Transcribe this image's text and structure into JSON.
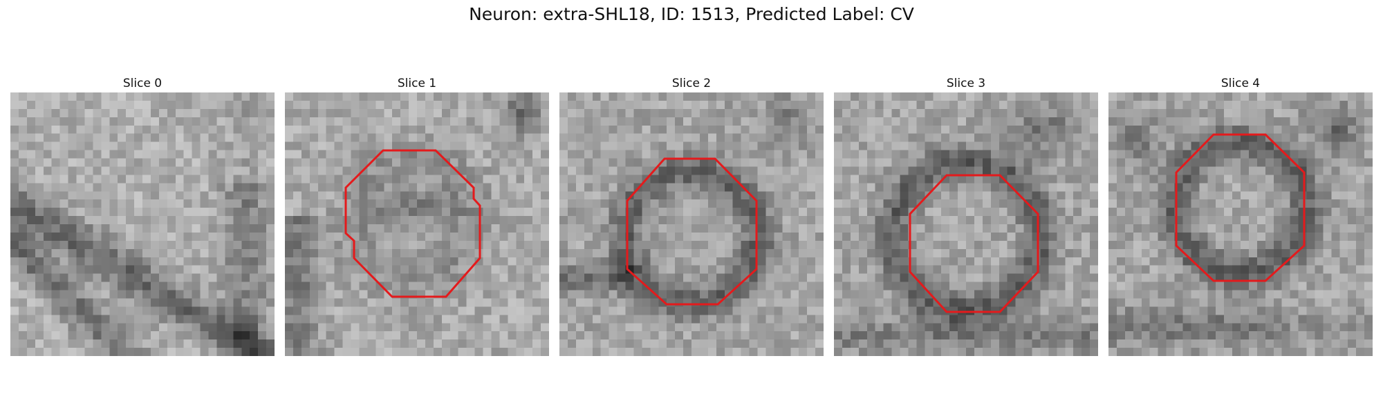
{
  "figure": {
    "title": "Neuron: extra-SHL18, ID: 1513, Predicted Label: CV"
  },
  "slices": [
    {
      "label": "Slice 0",
      "has_contour": false
    },
    {
      "label": "Slice 1",
      "has_contour": true
    },
    {
      "label": "Slice 2",
      "has_contour": true
    },
    {
      "label": "Slice 3",
      "has_contour": true
    },
    {
      "label": "Slice 4",
      "has_contour": true
    }
  ],
  "style": {
    "contour_color": "#e41a1c",
    "colormap": "gray"
  }
}
